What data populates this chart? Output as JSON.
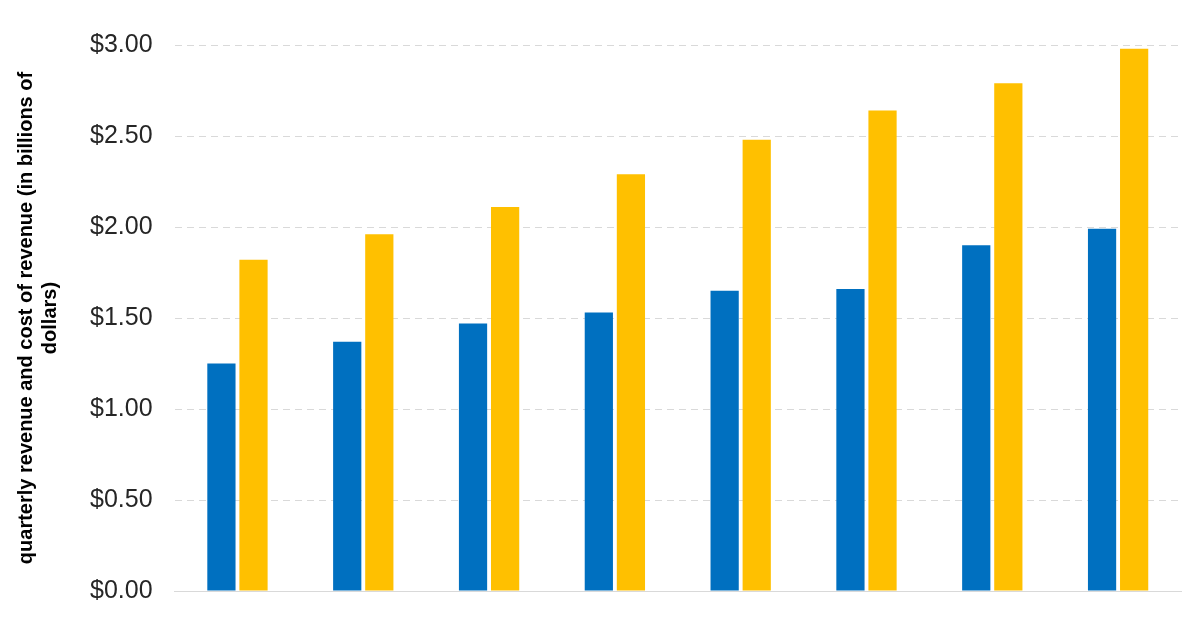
{
  "chart_data": {
    "type": "bar",
    "ylabel": "quarterly revenue and cost of revenue (in billions of dollars)",
    "categories": [
      null,
      null,
      null,
      null,
      null,
      null,
      null,
      null
    ],
    "series": [
      {
        "color": "#0070c0",
        "values": [
          1.25,
          1.37,
          1.47,
          1.53,
          1.65,
          1.66,
          1.9,
          1.99
        ]
      },
      {
        "color": "#ffc000",
        "values": [
          1.82,
          1.96,
          2.11,
          2.29,
          2.48,
          2.64,
          2.79,
          2.98
        ]
      }
    ],
    "ylim": [
      0,
      3
    ],
    "yticks": [
      {
        "value": 0,
        "label": "$0.00"
      },
      {
        "value": 0.5,
        "label": "$0.50"
      },
      {
        "value": 1,
        "label": "$1.00"
      },
      {
        "value": 1.5,
        "label": "$1.50"
      },
      {
        "value": 2,
        "label": "$2.00"
      },
      {
        "value": 2.5,
        "label": "$2.50"
      },
      {
        "value": 3,
        "label": "$3.00"
      }
    ],
    "grid": "y",
    "tick_labels": "y"
  }
}
